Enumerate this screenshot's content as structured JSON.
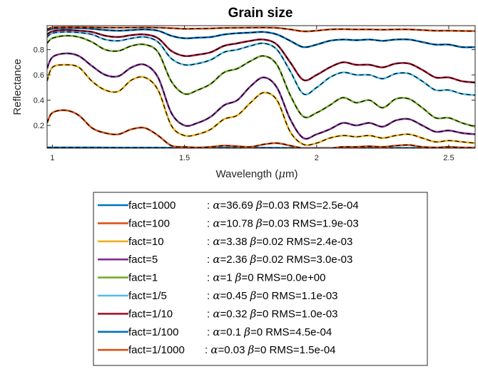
{
  "chart_data": {
    "type": "line",
    "title": "Grain size",
    "xlabel": "Wavelength (μm)",
    "xlabel_parts": [
      "Wavelength (",
      "μ",
      "m)"
    ],
    "ylabel": "Reflectance",
    "xlim": [
      0.98,
      2.6
    ],
    "ylim": [
      0.02,
      0.99
    ],
    "xticks": [
      1,
      1.5,
      2,
      2.5
    ],
    "xtick_labels": [
      "1",
      "1.5",
      "2",
      "2.5"
    ],
    "yticks": [
      0.2,
      0.4,
      0.6,
      0.8
    ],
    "ytick_labels": [
      "0.2",
      "0.4",
      "0.6",
      "0.8"
    ],
    "grid": false,
    "legend_position": "below",
    "fit_line_color": "#000000",
    "series": [
      {
        "name": "fact=1000",
        "color": "#0072BD",
        "alpha": "36.69",
        "beta": "0.03",
        "rms": "2.5e-04",
        "x": [
          0.98,
          1.05,
          1.15,
          1.25,
          1.35,
          1.45,
          1.5,
          1.6,
          1.7,
          1.8,
          1.9,
          1.95,
          2.0,
          2.1,
          2.2,
          2.3,
          2.4,
          2.5,
          2.6
        ],
        "y": [
          0.025,
          0.025,
          0.025,
          0.024,
          0.024,
          0.023,
          0.023,
          0.023,
          0.023,
          0.023,
          0.022,
          0.022,
          0.022,
          0.022,
          0.022,
          0.022,
          0.022,
          0.022,
          0.022
        ]
      },
      {
        "name": "fact=100",
        "color": "#D95319",
        "alpha": "10.78",
        "beta": "0.03",
        "rms": "1.9e-03",
        "x": [
          0.98,
          1.0,
          1.05,
          1.1,
          1.15,
          1.2,
          1.25,
          1.3,
          1.35,
          1.4,
          1.45,
          1.5,
          1.55,
          1.6,
          1.65,
          1.7,
          1.75,
          1.8,
          1.85,
          1.9,
          1.95,
          2.0,
          2.05,
          2.1,
          2.15,
          2.2,
          2.25,
          2.3,
          2.35,
          2.4,
          2.45,
          2.5,
          2.55,
          2.6
        ],
        "y": [
          0.22,
          0.3,
          0.32,
          0.28,
          0.18,
          0.14,
          0.13,
          0.17,
          0.18,
          0.12,
          0.04,
          0.03,
          0.025,
          0.03,
          0.04,
          0.035,
          0.03,
          0.05,
          0.06,
          0.04,
          0.02,
          0.02,
          0.02,
          0.03,
          0.03,
          0.035,
          0.03,
          0.04,
          0.045,
          0.03,
          0.025,
          0.03,
          0.025,
          0.025
        ]
      },
      {
        "name": "fact=10",
        "color": "#EDB120",
        "alpha": "3.38",
        "beta": "0.02",
        "rms": "2.4e-03",
        "x": [
          0.98,
          1.0,
          1.05,
          1.1,
          1.15,
          1.2,
          1.25,
          1.3,
          1.35,
          1.4,
          1.45,
          1.5,
          1.55,
          1.6,
          1.65,
          1.7,
          1.75,
          1.8,
          1.85,
          1.9,
          1.95,
          2.0,
          2.05,
          2.1,
          2.15,
          2.2,
          2.25,
          2.3,
          2.35,
          2.4,
          2.45,
          2.5,
          2.55,
          2.6
        ],
        "y": [
          0.55,
          0.66,
          0.68,
          0.66,
          0.55,
          0.48,
          0.47,
          0.56,
          0.58,
          0.48,
          0.2,
          0.12,
          0.13,
          0.17,
          0.25,
          0.28,
          0.38,
          0.46,
          0.4,
          0.15,
          0.05,
          0.06,
          0.1,
          0.12,
          0.11,
          0.12,
          0.1,
          0.12,
          0.13,
          0.1,
          0.07,
          0.08,
          0.07,
          0.06
        ]
      },
      {
        "name": "fact=5",
        "color": "#7E2F8E",
        "alpha": "2.36",
        "beta": "0.02",
        "rms": "3.0e-03",
        "x": [
          0.98,
          1.0,
          1.05,
          1.1,
          1.15,
          1.2,
          1.25,
          1.3,
          1.35,
          1.4,
          1.45,
          1.5,
          1.55,
          1.6,
          1.65,
          1.7,
          1.75,
          1.8,
          1.85,
          1.9,
          1.95,
          2.0,
          2.05,
          2.1,
          2.15,
          2.2,
          2.25,
          2.3,
          2.35,
          2.4,
          2.45,
          2.5,
          2.55,
          2.6
        ],
        "y": [
          0.65,
          0.74,
          0.77,
          0.75,
          0.67,
          0.6,
          0.59,
          0.66,
          0.68,
          0.58,
          0.3,
          0.2,
          0.22,
          0.27,
          0.36,
          0.4,
          0.51,
          0.58,
          0.5,
          0.25,
          0.1,
          0.13,
          0.17,
          0.22,
          0.2,
          0.22,
          0.19,
          0.24,
          0.25,
          0.2,
          0.15,
          0.16,
          0.14,
          0.13
        ]
      },
      {
        "name": "fact=1",
        "color": "#77AC30",
        "alpha": "1",
        "beta": "0",
        "rms": "0.0e+00",
        "x": [
          0.98,
          1.0,
          1.05,
          1.1,
          1.15,
          1.2,
          1.25,
          1.3,
          1.35,
          1.4,
          1.45,
          1.5,
          1.55,
          1.6,
          1.65,
          1.7,
          1.75,
          1.8,
          1.85,
          1.9,
          1.95,
          2.0,
          2.05,
          2.1,
          2.15,
          2.2,
          2.25,
          2.3,
          2.35,
          2.4,
          2.45,
          2.5,
          2.55,
          2.6
        ],
        "y": [
          0.85,
          0.89,
          0.91,
          0.9,
          0.86,
          0.8,
          0.79,
          0.83,
          0.84,
          0.78,
          0.55,
          0.45,
          0.48,
          0.53,
          0.62,
          0.65,
          0.71,
          0.75,
          0.68,
          0.44,
          0.27,
          0.3,
          0.36,
          0.42,
          0.38,
          0.4,
          0.34,
          0.41,
          0.41,
          0.34,
          0.26,
          0.26,
          0.22,
          0.19
        ]
      },
      {
        "name": "fact=1/5",
        "color": "#4DBEEE",
        "alpha": "0.45",
        "beta": "0",
        "rms": "1.1e-03",
        "x": [
          0.98,
          1.0,
          1.05,
          1.1,
          1.15,
          1.2,
          1.25,
          1.3,
          1.35,
          1.4,
          1.45,
          1.5,
          1.55,
          1.6,
          1.65,
          1.7,
          1.75,
          1.8,
          1.85,
          1.9,
          1.95,
          2.0,
          2.05,
          2.1,
          2.15,
          2.2,
          2.25,
          2.3,
          2.35,
          2.4,
          2.45,
          2.5,
          2.55,
          2.6
        ],
        "y": [
          0.9,
          0.93,
          0.94,
          0.935,
          0.92,
          0.88,
          0.87,
          0.89,
          0.9,
          0.86,
          0.73,
          0.68,
          0.69,
          0.72,
          0.78,
          0.8,
          0.83,
          0.85,
          0.8,
          0.63,
          0.45,
          0.5,
          0.58,
          0.62,
          0.6,
          0.6,
          0.57,
          0.61,
          0.61,
          0.55,
          0.48,
          0.48,
          0.45,
          0.44
        ]
      },
      {
        "name": "fact=1/10",
        "color": "#A2142F",
        "alpha": "0.32",
        "beta": "0",
        "rms": "1.0e-03",
        "x": [
          0.98,
          1.0,
          1.05,
          1.1,
          1.15,
          1.2,
          1.25,
          1.3,
          1.35,
          1.4,
          1.45,
          1.5,
          1.55,
          1.6,
          1.65,
          1.7,
          1.75,
          1.8,
          1.85,
          1.9,
          1.95,
          2.0,
          2.05,
          2.1,
          2.15,
          2.2,
          2.25,
          2.3,
          2.35,
          2.4,
          2.45,
          2.5,
          2.55,
          2.6
        ],
        "y": [
          0.92,
          0.945,
          0.955,
          0.95,
          0.94,
          0.91,
          0.9,
          0.915,
          0.92,
          0.89,
          0.79,
          0.75,
          0.76,
          0.78,
          0.83,
          0.85,
          0.87,
          0.88,
          0.84,
          0.7,
          0.56,
          0.6,
          0.66,
          0.7,
          0.68,
          0.68,
          0.66,
          0.69,
          0.69,
          0.64,
          0.58,
          0.58,
          0.55,
          0.54
        ]
      },
      {
        "name": "fact=1/100",
        "color": "#0072BD",
        "alpha": "0.1",
        "beta": "0",
        "rms": "4.5e-04",
        "x": [
          0.98,
          1.0,
          1.05,
          1.1,
          1.15,
          1.2,
          1.25,
          1.3,
          1.35,
          1.4,
          1.45,
          1.5,
          1.55,
          1.6,
          1.65,
          1.7,
          1.75,
          1.8,
          1.85,
          1.9,
          1.95,
          2.0,
          2.05,
          2.1,
          2.15,
          2.2,
          2.25,
          2.3,
          2.35,
          2.4,
          2.45,
          2.5,
          2.55,
          2.6
        ],
        "y": [
          0.95,
          0.965,
          0.97,
          0.97,
          0.965,
          0.955,
          0.95,
          0.955,
          0.96,
          0.95,
          0.91,
          0.89,
          0.895,
          0.9,
          0.92,
          0.93,
          0.935,
          0.94,
          0.92,
          0.87,
          0.82,
          0.84,
          0.87,
          0.88,
          0.875,
          0.88,
          0.87,
          0.88,
          0.88,
          0.86,
          0.84,
          0.84,
          0.82,
          0.82
        ]
      },
      {
        "name": "fact=1/1000",
        "color": "#D95319",
        "alpha": "0.03",
        "beta": "0",
        "rms": "1.5e-04",
        "x": [
          0.98,
          1.0,
          1.05,
          1.1,
          1.15,
          1.2,
          1.25,
          1.3,
          1.35,
          1.4,
          1.45,
          1.5,
          1.55,
          1.6,
          1.65,
          1.7,
          1.75,
          1.8,
          1.85,
          1.9,
          1.95,
          2.0,
          2.05,
          2.1,
          2.15,
          2.2,
          2.25,
          2.3,
          2.35,
          2.4,
          2.45,
          2.5,
          2.55,
          2.6
        ],
        "y": [
          0.96,
          0.975,
          0.978,
          0.978,
          0.977,
          0.975,
          0.974,
          0.975,
          0.976,
          0.974,
          0.97,
          0.965,
          0.966,
          0.968,
          0.972,
          0.973,
          0.974,
          0.975,
          0.972,
          0.96,
          0.945,
          0.95,
          0.96,
          0.962,
          0.96,
          0.96,
          0.958,
          0.96,
          0.96,
          0.955,
          0.95,
          0.95,
          0.948,
          0.947
        ]
      }
    ]
  }
}
